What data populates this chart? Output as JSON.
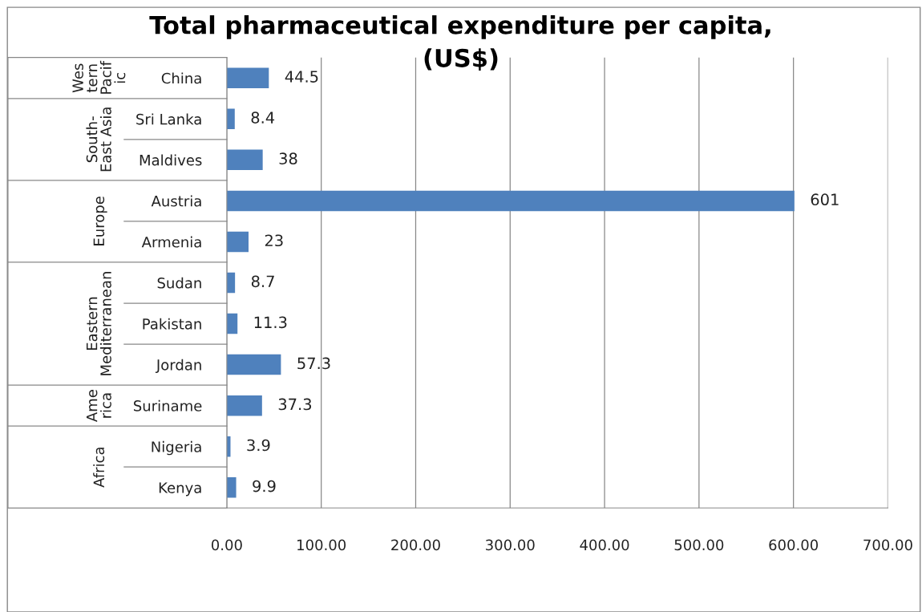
{
  "chart_data": {
    "type": "bar",
    "orientation": "horizontal",
    "title": "Total pharmaceutical expenditure per capita,\n(US$)",
    "categories": [
      "China",
      "Sri Lanka",
      "Maldives",
      "Austria",
      "Armenia",
      "Sudan",
      "Pakistan",
      "Jordan",
      "Suriname",
      "Nigeria",
      "Kenya"
    ],
    "values": [
      44.5,
      8.4,
      38,
      601,
      23,
      8.7,
      11.3,
      57.3,
      37.3,
      3.9,
      9.9
    ],
    "color": "#4f81bd",
    "data_labels": true,
    "grid": "x",
    "xlim": [
      0,
      700
    ],
    "xticks": [
      {
        "value": 0,
        "label": "0.00"
      },
      {
        "value": 100,
        "label": "100.00"
      },
      {
        "value": 200,
        "label": "200.00"
      },
      {
        "value": 300,
        "label": "300.00"
      },
      {
        "value": 400,
        "label": "400.00"
      },
      {
        "value": 500,
        "label": "500.00"
      },
      {
        "value": 600,
        "label": "600.00"
      },
      {
        "value": 700,
        "label": "700.00"
      }
    ],
    "annotations": [
      "Wes\ntern\nPacif\nic",
      "South-\nEast Asia",
      "Europe",
      "Eastern\nMediterranean",
      "Ame\nrica",
      "Africa"
    ]
  }
}
